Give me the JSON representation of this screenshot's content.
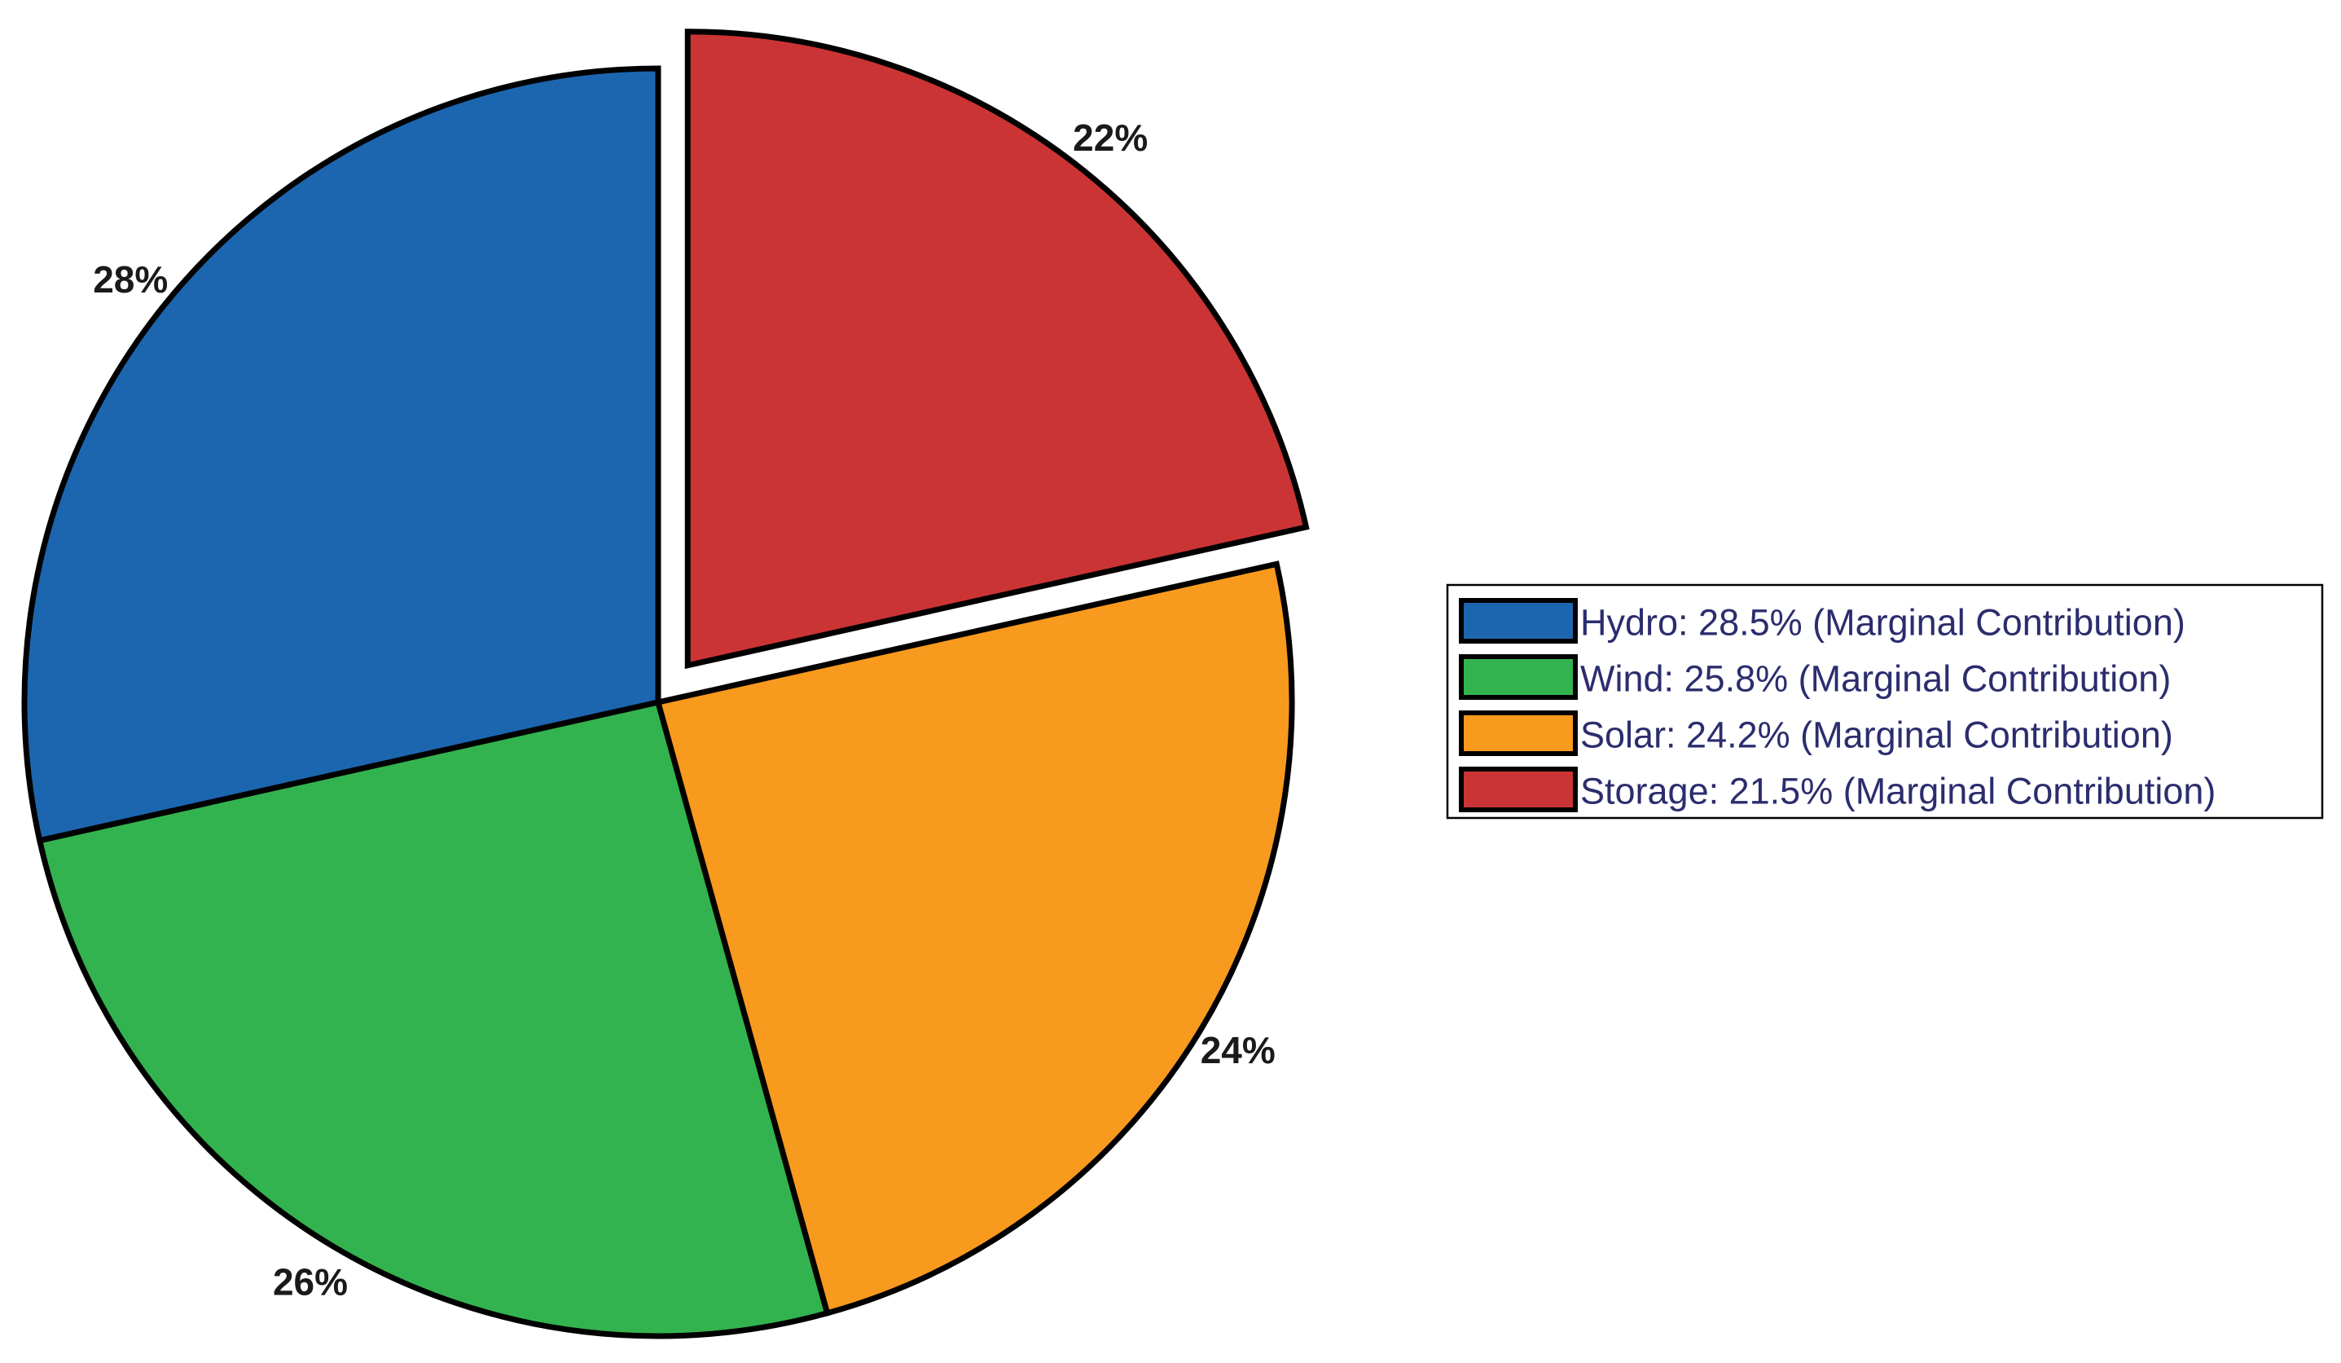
{
  "chart_data": {
    "type": "pie",
    "slices": [
      {
        "name": "Hydro",
        "value": 28.5,
        "color": "#1c66b0",
        "pct_label": "28%",
        "legend_label": "Hydro: 28.5% (Marginal Contribution)",
        "explode": false
      },
      {
        "name": "Wind",
        "value": 25.8,
        "color": "#33b34f",
        "pct_label": "26%",
        "legend_label": "Wind: 25.8% (Marginal Contribution)",
        "explode": false
      },
      {
        "name": "Solar",
        "value": 24.2,
        "color": "#f89a1e",
        "pct_label": "24%",
        "legend_label": "Solar: 24.2% (Marginal Contribution)",
        "explode": false
      },
      {
        "name": "Storage",
        "value": 21.5,
        "color": "#cb3434",
        "pct_label": "22%",
        "legend_label": "Storage: 21.5% (Marginal Contribution)",
        "explode": true
      }
    ],
    "start_angle_deg": 90,
    "direction": "counterclockwise",
    "edge_color": "#000000",
    "legend_placement": "right"
  }
}
